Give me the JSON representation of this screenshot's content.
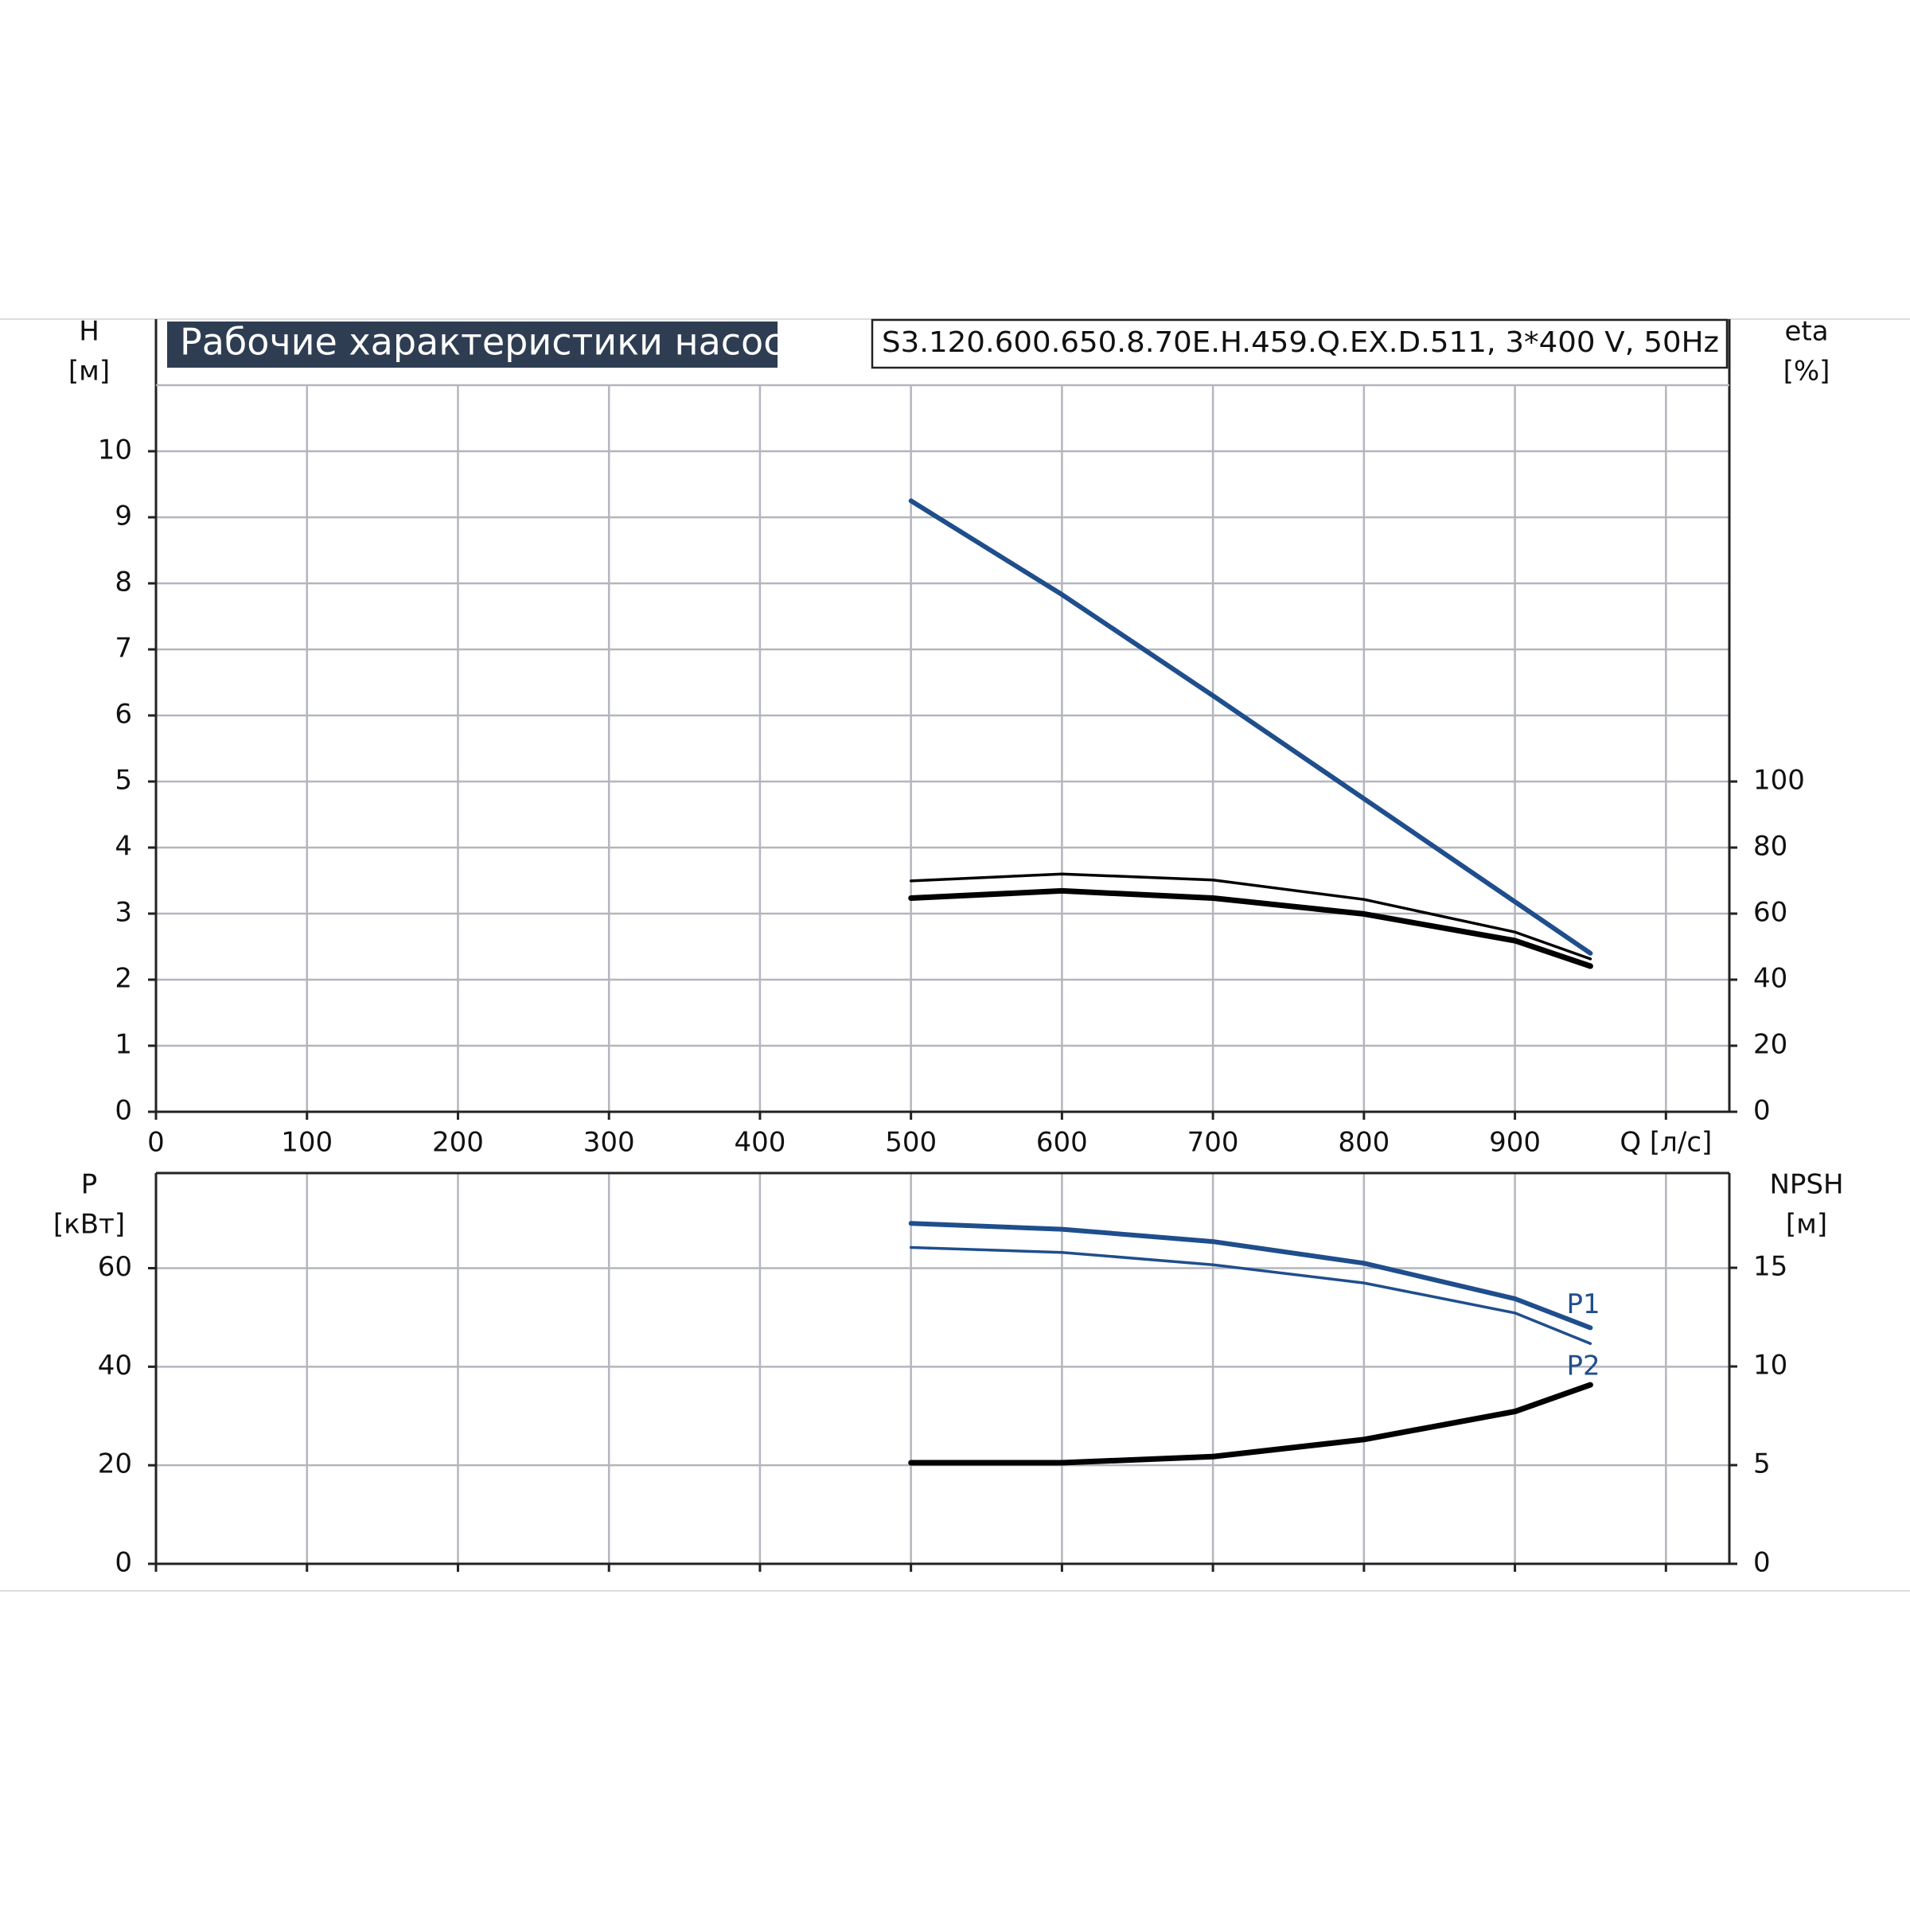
{
  "chart_data": [
    {
      "type": "line",
      "title": "Рабочие характеристики насоса",
      "subtitle": "S3.120.600.650.8.70E.H.459.Q.EX.D.511, 3*400 V, 50Hz",
      "ylabel": [
        "H",
        "[м]"
      ],
      "y2label": [
        "eta",
        "[%]"
      ],
      "x": [
        500,
        600,
        700,
        800,
        900,
        950
      ],
      "xlim": [
        0,
        1042
      ],
      "xticks": [
        0,
        100,
        200,
        300,
        400,
        500,
        600,
        700,
        800,
        900,
        {
          "value": 1000,
          "label": "Q [л/с]"
        }
      ],
      "ylim": [
        0,
        11
      ],
      "yticks": [
        0,
        1,
        2,
        3,
        4,
        5,
        6,
        7,
        8,
        9,
        10
      ],
      "y2lim": [
        0,
        220
      ],
      "y2ticks": [
        0,
        20,
        40,
        60,
        80,
        100
      ],
      "grid": true,
      "show_xtick_labels": true,
      "series": [
        {
          "color": "#1f4e8c",
          "line_width": 6,
          "axis": "y",
          "values": [
            9.25,
            7.83,
            6.3,
            4.74,
            3.18,
            2.4
          ]
        },
        {
          "color": "#000000",
          "line_width": 3.5,
          "axis": "y2",
          "values": [
            69.9,
            72,
            70.2,
            64.3,
            54.4,
            46.3
          ]
        },
        {
          "color": "#000000",
          "line_width": 7,
          "axis": "y2",
          "values": [
            64.7,
            66.9,
            64.7,
            59.9,
            51.8,
            44.1
          ]
        }
      ]
    },
    {
      "type": "line",
      "ylabel": [
        "P",
        "[кВт]"
      ],
      "y2label": [
        "NPSH",
        "[м]"
      ],
      "x": [
        500,
        600,
        700,
        800,
        900,
        950
      ],
      "xlim": [
        0,
        1042
      ],
      "xticks": [
        0,
        100,
        200,
        300,
        400,
        500,
        600,
        700,
        800,
        900,
        1000
      ],
      "ylim": [
        0,
        79.3
      ],
      "yticks": [
        0,
        20,
        40,
        60
      ],
      "y2lim": [
        0,
        19.8
      ],
      "y2ticks": [
        0,
        5,
        10,
        15
      ],
      "grid": true,
      "show_xtick_labels": false,
      "series": [
        {
          "name": "P1",
          "color": "#1f4e8c",
          "line_width": 6,
          "axis": "y",
          "values": [
            69.1,
            67.9,
            65.4,
            61,
            53.8,
            47.9
          ]
        },
        {
          "name": "P2",
          "color": "#1f4e8c",
          "line_width": 3.5,
          "axis": "y",
          "values": [
            64.2,
            63.2,
            60.7,
            57,
            50.9,
            44.7
          ]
        },
        {
          "color": "#000000",
          "line_width": 7,
          "axis": "y2",
          "values": [
            5.12,
            5.12,
            5.43,
            6.3,
            7.72,
            9.07
          ]
        }
      ]
    }
  ]
}
